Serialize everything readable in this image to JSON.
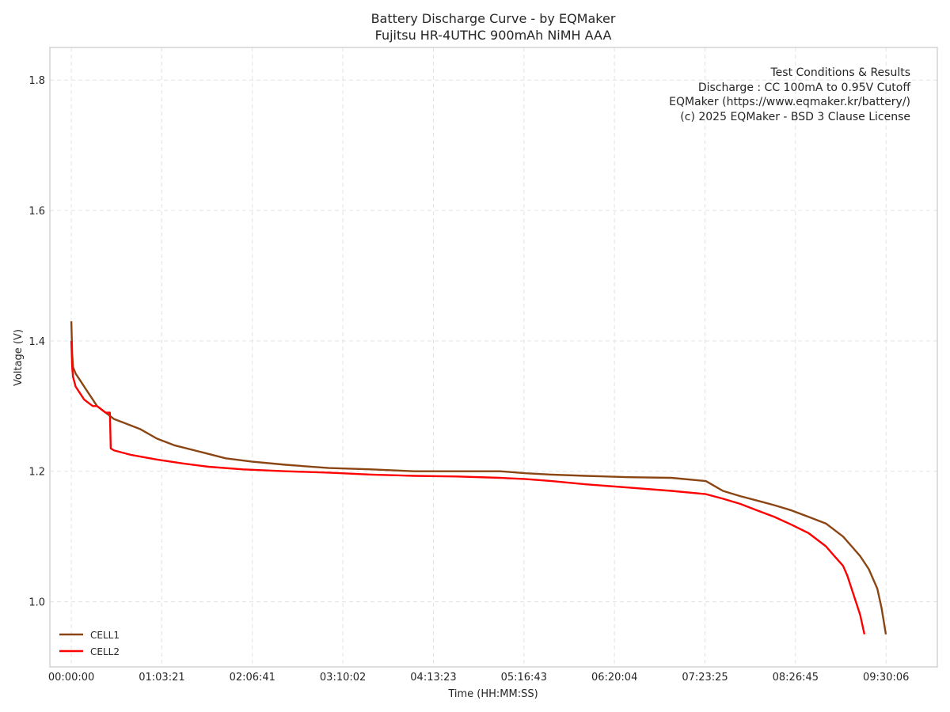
{
  "chart_data": {
    "type": "line",
    "title": "Battery Discharge Curve - by EQMaker",
    "subtitle": "Fujitsu HR-4UTHC 900mAh NiMH AAA",
    "xlabel": "Time (HH:MM:SS)",
    "ylabel": "Voltage (V)",
    "xlim": [
      -0.25,
      10.1
    ],
    "ylim": [
      0.9,
      1.85
    ],
    "grid": true,
    "x_ticks": [
      {
        "value": 0.0,
        "label": "00:00:00"
      },
      {
        "value": 1.0558,
        "label": "01:03:21"
      },
      {
        "value": 2.1114,
        "label": "02:06:41"
      },
      {
        "value": 3.1672,
        "label": "03:10:02"
      },
      {
        "value": 4.2231,
        "label": "04:13:23"
      },
      {
        "value": 5.2786,
        "label": "05:16:43"
      },
      {
        "value": 6.3344,
        "label": "06:20:04"
      },
      {
        "value": 7.3903,
        "label": "07:23:25"
      },
      {
        "value": 8.4458,
        "label": "08:26:45"
      },
      {
        "value": 9.5017,
        "label": "09:30:06"
      }
    ],
    "y_ticks": [
      {
        "value": 1.0,
        "label": "1.0"
      },
      {
        "value": 1.2,
        "label": "1.2"
      },
      {
        "value": 1.4,
        "label": "1.4"
      },
      {
        "value": 1.6,
        "label": "1.6"
      },
      {
        "value": 1.8,
        "label": "1.8"
      }
    ],
    "annotation_lines": [
      "Test Conditions & Results",
      "Discharge : CC 100mA to 0.95V Cutoff",
      "EQMaker (https://www.eqmaker.kr/battery/)",
      "(c) 2025 EQMaker - BSD 3 Clause License"
    ],
    "legend_position": "bottom-left",
    "series": [
      {
        "name": "CELL1",
        "color": "#8B4513",
        "x": [
          0,
          0.01,
          0.02,
          0.05,
          0.1,
          0.15,
          0.2,
          0.25,
          0.3,
          0.4,
          0.5,
          0.6,
          0.8,
          1.0,
          1.2,
          1.5,
          1.8,
          2.1,
          2.5,
          3.0,
          3.5,
          4.0,
          4.5,
          5.0,
          5.3,
          5.6,
          6.0,
          6.5,
          7.0,
          7.4,
          7.6,
          7.8,
          8.0,
          8.2,
          8.4,
          8.6,
          8.8,
          9.0,
          9.1,
          9.2,
          9.3,
          9.4,
          9.45,
          9.5
        ],
        "y": [
          1.43,
          1.38,
          1.36,
          1.35,
          1.34,
          1.33,
          1.32,
          1.31,
          1.3,
          1.29,
          1.28,
          1.275,
          1.265,
          1.25,
          1.24,
          1.23,
          1.22,
          1.215,
          1.21,
          1.205,
          1.203,
          1.2,
          1.2,
          1.2,
          1.197,
          1.195,
          1.193,
          1.191,
          1.19,
          1.185,
          1.17,
          1.162,
          1.155,
          1.148,
          1.14,
          1.13,
          1.12,
          1.1,
          1.085,
          1.07,
          1.05,
          1.02,
          0.99,
          0.95
        ]
      },
      {
        "name": "CELL2",
        "color": "#FF0000",
        "x": [
          0,
          0.01,
          0.02,
          0.05,
          0.1,
          0.15,
          0.2,
          0.25,
          0.3,
          0.35,
          0.4,
          0.45,
          0.46,
          0.5,
          0.7,
          1.0,
          1.3,
          1.6,
          2.0,
          2.5,
          3.0,
          3.5,
          4.0,
          4.5,
          5.0,
          5.3,
          5.6,
          6.0,
          6.5,
          7.0,
          7.4,
          7.6,
          7.8,
          8.0,
          8.2,
          8.4,
          8.6,
          8.8,
          8.9,
          9.0,
          9.05,
          9.1,
          9.15,
          9.2,
          9.25
        ],
        "y": [
          1.4,
          1.36,
          1.345,
          1.33,
          1.32,
          1.31,
          1.305,
          1.3,
          1.3,
          1.295,
          1.29,
          1.29,
          1.235,
          1.232,
          1.225,
          1.218,
          1.212,
          1.207,
          1.203,
          1.2,
          1.198,
          1.195,
          1.193,
          1.192,
          1.19,
          1.188,
          1.185,
          1.18,
          1.175,
          1.17,
          1.165,
          1.158,
          1.15,
          1.14,
          1.13,
          1.118,
          1.105,
          1.085,
          1.07,
          1.055,
          1.04,
          1.02,
          1.0,
          0.98,
          0.95
        ]
      }
    ]
  }
}
